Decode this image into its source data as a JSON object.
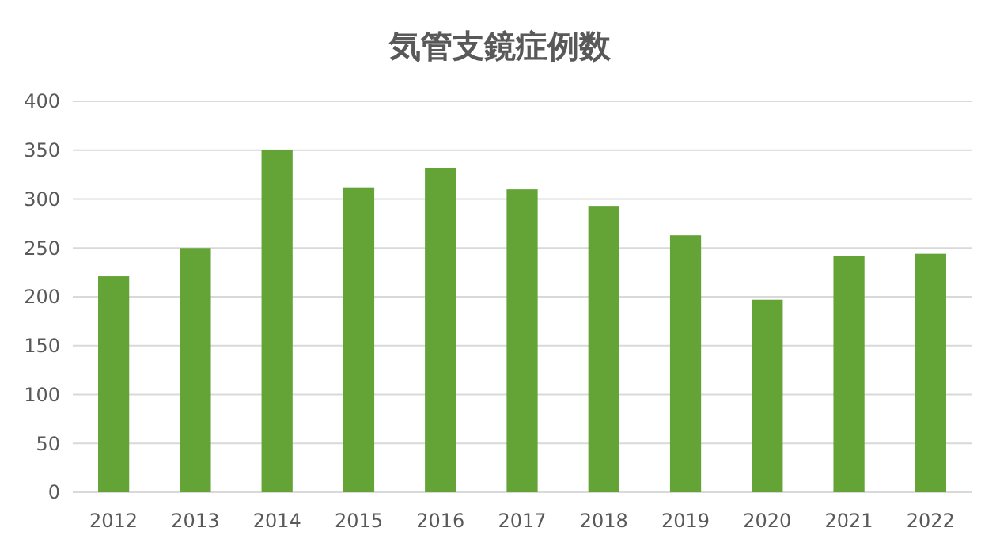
{
  "chart_data": {
    "type": "bar",
    "title": "気管支鏡症例数",
    "categories": [
      "2012",
      "2013",
      "2014",
      "2015",
      "2016",
      "2017",
      "2018",
      "2019",
      "2020",
      "2021",
      "2022"
    ],
    "values": [
      221,
      250,
      350,
      312,
      332,
      310,
      293,
      263,
      197,
      242,
      244
    ],
    "color": "#64a437",
    "ylim": [
      0,
      400
    ],
    "yticks": [
      0,
      50,
      100,
      150,
      200,
      250,
      300,
      350,
      400
    ],
    "grid": "y"
  }
}
